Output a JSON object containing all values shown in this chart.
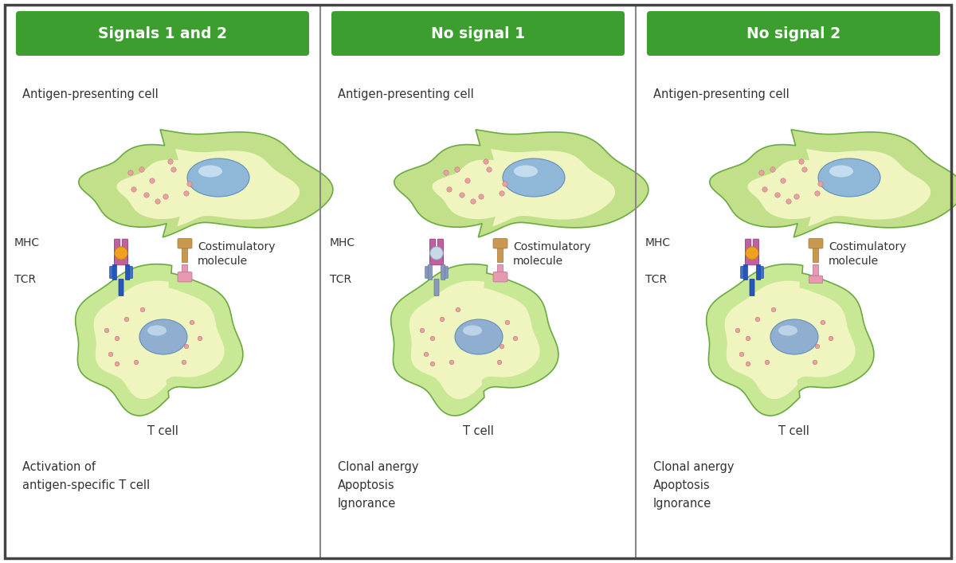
{
  "panels": [
    {
      "title": "Signals 1 and 2",
      "apc_label": "Antigen-presenting cell",
      "tcell_label": "T cell",
      "mhc_label": "MHC",
      "tcr_label": "TCR",
      "costimlabel": "Costimulatory\nmolecule",
      "bottom_text": "Activation of\nantigen-specific T cell",
      "signal1_active": true,
      "signal2_active": true
    },
    {
      "title": "No signal 1",
      "apc_label": "Antigen-presenting cell",
      "tcell_label": "T cell",
      "mhc_label": "MHC",
      "tcr_label": "TCR",
      "costimlabel": "Costimulatory\nmolecule",
      "bottom_text": "Clonal anergy\nApoptosis\nIgnorance",
      "signal1_active": false,
      "signal2_active": true
    },
    {
      "title": "No signal 2",
      "apc_label": "Antigen-presenting cell",
      "tcell_label": "T cell",
      "mhc_label": "MHC",
      "tcr_label": "TCR",
      "costimlabel": "Costimulatory\nmolecule",
      "bottom_text": "Clonal anergy\nApoptosis\nIgnorance",
      "signal1_active": true,
      "signal2_active": false
    }
  ],
  "header_bg": "#3d9e30",
  "header_text_color": "#ffffff",
  "apc_outer_color": "#c2e08a",
  "apc_inner_color": "#e8f5c8",
  "tcell_outer_color": "#c8e896",
  "cytoplasm_color": "#f0f5c0",
  "nucleus_apc_color": "#8fb8d8",
  "nucleus_tcell_color": "#90aed0",
  "mhc_color": "#c060a0",
  "antigen_active_color": "#f0a020",
  "antigen_inactive_color": "#c8d8e8",
  "tcr_color": "#2855b8",
  "tcr_cd3_color": "#4070c8",
  "costim_apc_color": "#c89850",
  "costim_tcell_color": "#e898b0",
  "dot_color": "#e8a0a0",
  "dot_edge_color": "#c07878",
  "label_color": "#333333",
  "border_color": "#444444",
  "divider_color": "#888888",
  "bg_color": "#ffffff",
  "green_edge": "#6aaa40"
}
